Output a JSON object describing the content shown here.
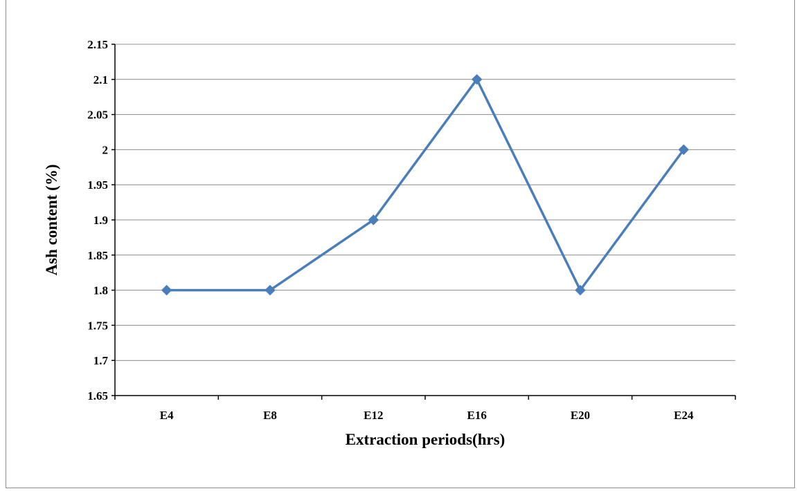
{
  "chart_data": {
    "type": "line",
    "title": "",
    "xlabel": "Extraction periods(hrs)",
    "ylabel": "Ash content (%)",
    "categories": [
      "E4",
      "E8",
      "E12",
      "E16",
      "E20",
      "E24"
    ],
    "series": [
      {
        "values": [
          1.8,
          1.8,
          1.9,
          2.1,
          1.8,
          2.0
        ],
        "color": "#4a7ebb",
        "marker": "diamond"
      }
    ],
    "ylim": [
      1.65,
      2.15
    ],
    "yticks": [
      "1.65",
      "1.7",
      "1.75",
      "1.8",
      "1.85",
      "1.9",
      "1.95",
      "2",
      "2.05",
      "2.1",
      "2.15"
    ],
    "grid": "horizontal",
    "legend": "none"
  }
}
